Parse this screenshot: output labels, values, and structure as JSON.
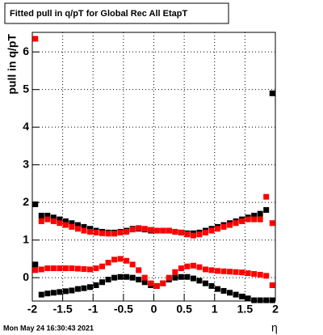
{
  "chart_data": {
    "type": "scatter",
    "title": "Fitted pull in q/pT for Global Rec All EtapT",
    "y_label": "pull in q/pT",
    "x_label": "η",
    "timestamp": "Mon May 24 16:30:43 2021",
    "x": [
      -1.95,
      -1.85,
      -1.75,
      -1.65,
      -1.55,
      -1.45,
      -1.35,
      -1.25,
      -1.15,
      -1.05,
      -0.95,
      -0.85,
      -0.75,
      -0.65,
      -0.55,
      -0.45,
      -0.35,
      -0.25,
      -0.15,
      -0.05,
      0.05,
      0.15,
      0.25,
      0.35,
      0.45,
      0.55,
      0.65,
      0.75,
      0.85,
      0.95,
      1.05,
      1.15,
      1.25,
      1.35,
      1.45,
      1.55,
      1.65,
      1.75,
      1.85,
      1.95
    ],
    "series": [
      {
        "color": "#000000",
        "values": [
          1.95,
          1.65,
          1.65,
          1.6,
          1.55,
          1.5,
          1.45,
          1.4,
          1.35,
          1.3,
          1.25,
          1.22,
          1.2,
          1.2,
          1.22,
          1.25,
          1.3,
          1.3,
          1.28,
          1.25,
          1.25,
          1.25,
          1.25,
          1.22,
          1.2,
          1.18,
          1.18,
          1.2,
          1.25,
          1.3,
          1.35,
          1.4,
          1.45,
          1.5,
          1.55,
          1.6,
          1.65,
          1.7,
          1.8,
          4.9
        ]
      },
      {
        "color": "#000000",
        "values": [
          0.35,
          -0.45,
          -0.42,
          -0.4,
          -0.38,
          -0.36,
          -0.34,
          -0.3,
          -0.28,
          -0.25,
          -0.2,
          -0.12,
          -0.05,
          0,
          0.02,
          0.02,
          0,
          -0.05,
          -0.12,
          -0.2,
          -0.22,
          -0.15,
          -0.05,
          0,
          0.02,
          0.02,
          -0.02,
          -0.08,
          -0.15,
          -0.22,
          -0.3,
          -0.35,
          -0.4,
          -0.45,
          -0.5,
          -0.55,
          -0.6,
          -0.6,
          -0.6,
          -0.6
        ]
      },
      {
        "color": "#ff0000",
        "values": [
          6.35,
          1.5,
          1.55,
          1.5,
          1.45,
          1.4,
          1.35,
          1.3,
          1.25,
          1.22,
          1.2,
          1.18,
          1.17,
          1.17,
          1.2,
          1.22,
          1.28,
          1.32,
          1.3,
          1.27,
          1.25,
          1.25,
          1.25,
          1.22,
          1.2,
          1.15,
          1.12,
          1.15,
          1.2,
          1.25,
          1.3,
          1.35,
          1.4,
          1.45,
          1.5,
          1.55,
          1.55,
          1.55,
          2.15,
          1.45
        ]
      },
      {
        "color": "#ff0000",
        "values": [
          0.2,
          0.22,
          0.25,
          0.25,
          0.25,
          0.25,
          0.25,
          0.24,
          0.23,
          0.22,
          0.25,
          0.3,
          0.4,
          0.48,
          0.5,
          0.45,
          0.35,
          0.2,
          0,
          -0.15,
          -0.22,
          -0.15,
          0,
          0.15,
          0.25,
          0.3,
          0.32,
          0.28,
          0.22,
          0.2,
          0.18,
          0.17,
          0.16,
          0.15,
          0.14,
          0.12,
          0.1,
          0.08,
          0.05,
          -0.2
        ]
      }
    ],
    "xlim": [
      -2,
      2
    ],
    "ylim": [
      -0.62,
      6.52
    ],
    "xticks": [
      -2,
      -1.5,
      -1,
      -0.5,
      0,
      0.5,
      1,
      1.5,
      2
    ],
    "yticks": [
      0,
      1,
      2,
      3,
      4,
      5,
      6
    ],
    "grid": true
  }
}
